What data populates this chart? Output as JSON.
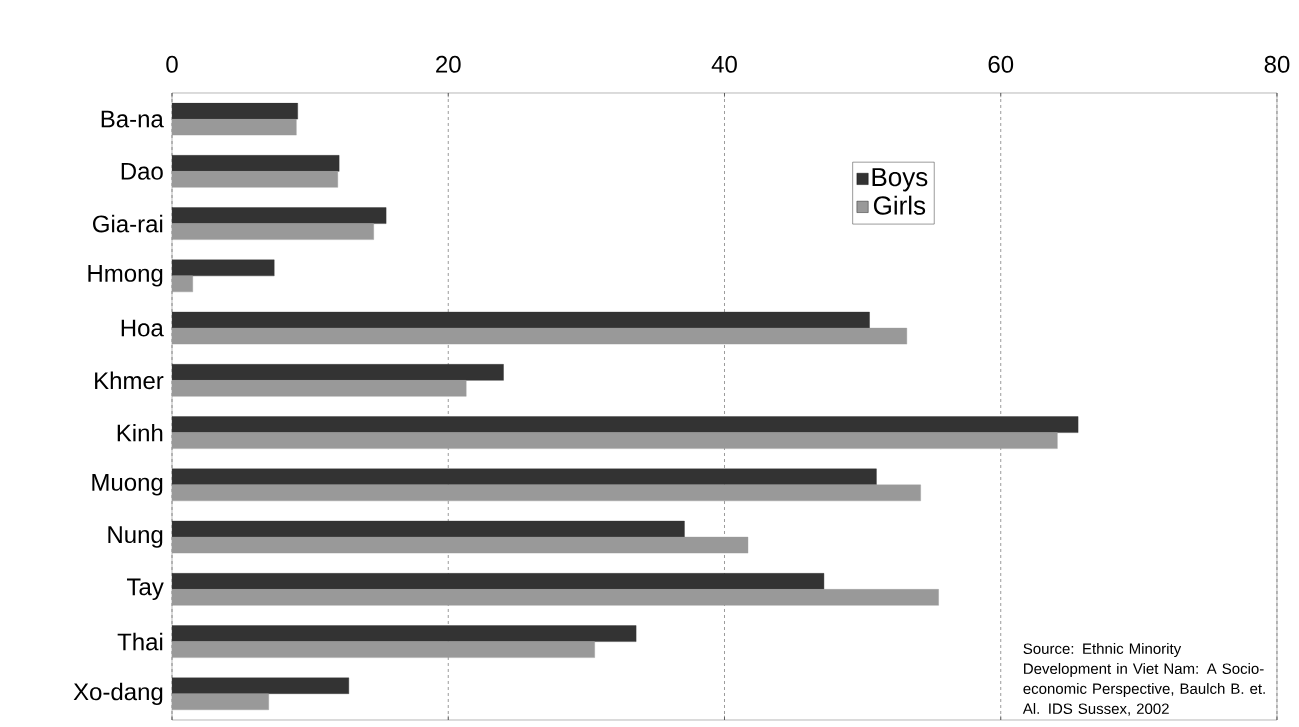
{
  "chart_data": {
    "type": "bar",
    "orientation": "horizontal",
    "categories": [
      "Ba-na",
      "Dao",
      "Gia-rai",
      "Hmong",
      "Hoa",
      "Khmer",
      "Kinh",
      "Muong",
      "Nung",
      "Tay",
      "Thai",
      "Xo-dang"
    ],
    "series": [
      {
        "name": "Boys",
        "color": "#333333",
        "values": [
          9.1,
          12.1,
          15.5,
          7.4,
          50.5,
          24.0,
          65.6,
          51.0,
          37.1,
          47.2,
          33.6,
          12.8
        ]
      },
      {
        "name": "Girls",
        "color": "#999999",
        "values": [
          9.0,
          12.0,
          14.6,
          1.5,
          53.2,
          21.3,
          64.1,
          54.2,
          41.7,
          55.5,
          30.6,
          7.0
        ]
      }
    ],
    "xlim": [
      0,
      80
    ],
    "xticks": [
      0,
      20,
      40,
      60,
      80
    ],
    "grid": "x",
    "legend": "top right",
    "annotations": [
      "Source: Ethnic Minority Development in Viet Nam: A Socio-economic Perspective, Baulch B. et. Al. IDS Sussex, 2002"
    ]
  }
}
